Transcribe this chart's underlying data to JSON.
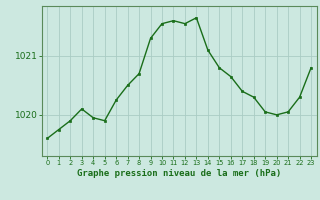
{
  "x": [
    0,
    1,
    2,
    3,
    4,
    5,
    6,
    7,
    8,
    9,
    10,
    11,
    12,
    13,
    14,
    15,
    16,
    17,
    18,
    19,
    20,
    21,
    22,
    23
  ],
  "y": [
    1019.6,
    1019.75,
    1019.9,
    1020.1,
    1019.95,
    1019.9,
    1020.25,
    1020.5,
    1020.7,
    1021.3,
    1021.55,
    1021.6,
    1021.55,
    1021.65,
    1021.1,
    1020.8,
    1020.65,
    1020.4,
    1020.3,
    1020.05,
    1020.0,
    1020.05,
    1020.3,
    1020.8
  ],
  "line_color": "#1a6e1a",
  "marker_color": "#1a6e1a",
  "bg_color": "#cce8e0",
  "grid_color": "#aaccc4",
  "xlabel": "Graphe pression niveau de la mer (hPa)",
  "yticks": [
    1020,
    1021
  ],
  "ylim": [
    1019.3,
    1021.85
  ],
  "xlim": [
    -0.5,
    23.5
  ],
  "xlabel_color": "#1a6e1a",
  "tick_color": "#1a6e1a",
  "border_color": "#5a8a5a"
}
